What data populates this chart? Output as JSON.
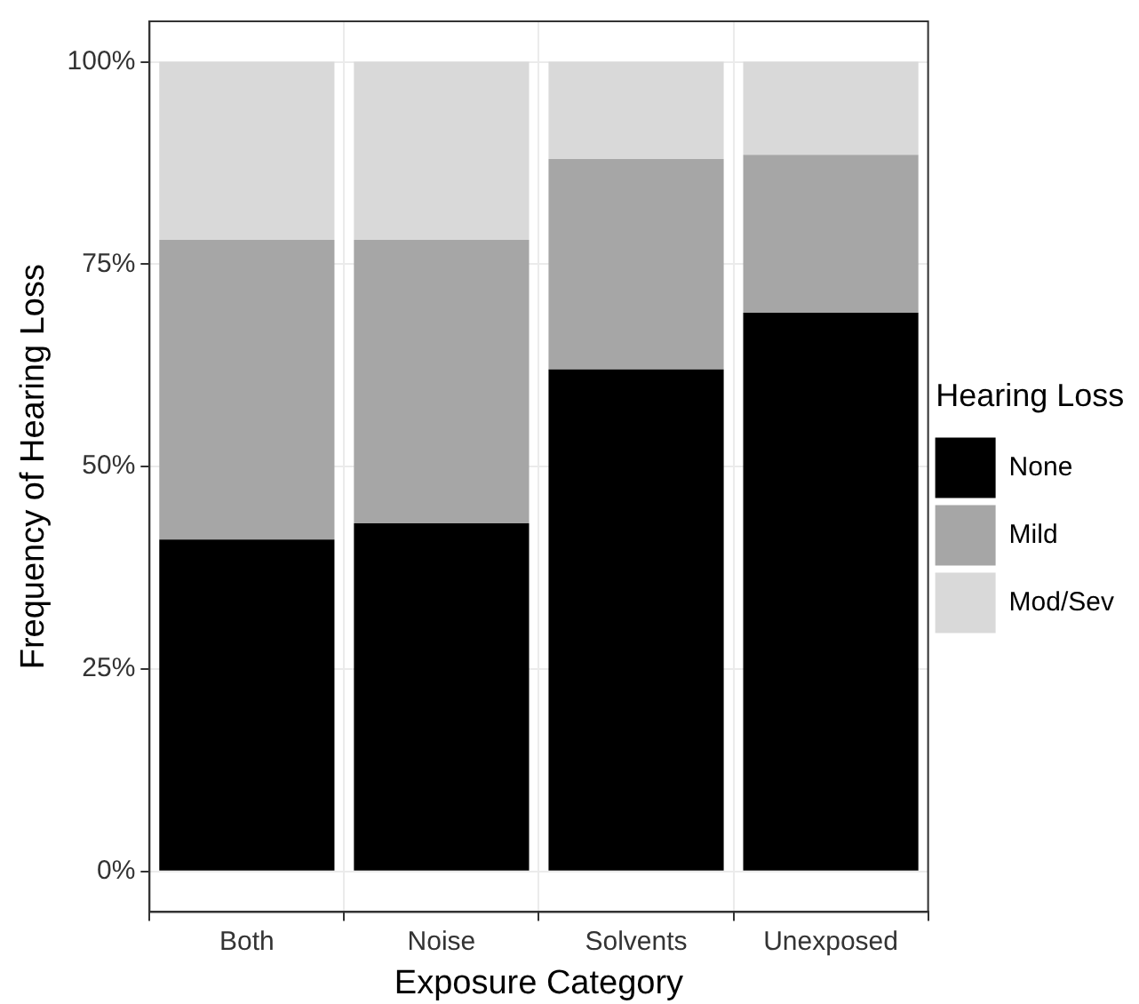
{
  "chart_data": {
    "type": "bar",
    "stacked": true,
    "xlabel": "Exposure Category",
    "ylabel": "Frequency of Hearing Loss",
    "legend_title": "Hearing Loss",
    "legend": "right",
    "grid": true,
    "categories": [
      "Both",
      "Noise",
      "Solvents",
      "Unexposed"
    ],
    "series": [
      {
        "name": "None",
        "color": "#000000",
        "values": [
          41,
          43,
          62,
          69
        ]
      },
      {
        "name": "Mild",
        "color": "#a6a6a6",
        "values": [
          37,
          35,
          26,
          19.5
        ]
      },
      {
        "name": "Mod/Sev",
        "color": "#d9d9d9",
        "values": [
          22,
          22,
          12,
          11.5
        ]
      }
    ],
    "ylim": [
      -5,
      105
    ],
    "yticks": [
      {
        "value": 0,
        "label": "0%"
      },
      {
        "value": 25,
        "label": "25%"
      },
      {
        "value": 50,
        "label": "50%"
      },
      {
        "value": 75,
        "label": "75%"
      },
      {
        "value": 100,
        "label": "100%"
      }
    ]
  }
}
